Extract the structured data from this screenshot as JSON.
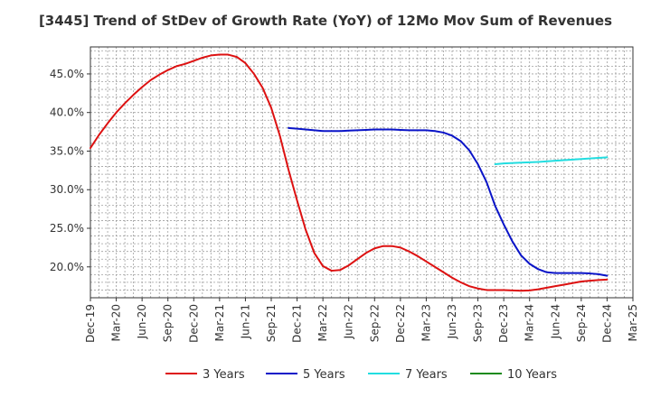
{
  "chart_data": {
    "type": "line",
    "title": "[3445]  Trend of StDev of Growth Rate (YoY) of 12Mo Mov Sum of Revenues",
    "xlabel": "",
    "ylabel": "",
    "x_tick_labels": [
      "Dec-19",
      "Mar-20",
      "Jun-20",
      "Sep-20",
      "Dec-20",
      "Mar-21",
      "Jun-21",
      "Sep-21",
      "Dec-21",
      "Mar-22",
      "Jun-22",
      "Sep-22",
      "Dec-22",
      "Mar-23",
      "Jun-23",
      "Sep-23",
      "Dec-23",
      "Mar-24",
      "Jun-24",
      "Sep-24",
      "Dec-24",
      "Mar-25"
    ],
    "y_tick_labels": [
      "20.0%",
      "25.0%",
      "30.0%",
      "35.0%",
      "40.0%",
      "45.0%"
    ],
    "y_ticks": [
      20,
      25,
      30,
      35,
      40,
      45
    ],
    "ylim": [
      16,
      48.5
    ],
    "x_range_months": [
      0,
      63
    ],
    "grid": true,
    "legend_position": "bottom",
    "series": [
      {
        "name": "3 Years",
        "color": "#dd1111",
        "points": [
          [
            0,
            35.4
          ],
          [
            1,
            37.1
          ],
          [
            2,
            38.6
          ],
          [
            3,
            40.0
          ],
          [
            4,
            41.2
          ],
          [
            5,
            42.3
          ],
          [
            6,
            43.3
          ],
          [
            7,
            44.2
          ],
          [
            8,
            44.9
          ],
          [
            9,
            45.5
          ],
          [
            10,
            46.0
          ],
          [
            11,
            46.3
          ],
          [
            12,
            46.7
          ],
          [
            13,
            47.1
          ],
          [
            14,
            47.4
          ],
          [
            15,
            47.5
          ],
          [
            16,
            47.5
          ],
          [
            17,
            47.2
          ],
          [
            18,
            46.4
          ],
          [
            19,
            45.0
          ],
          [
            20,
            43.2
          ],
          [
            21,
            40.6
          ],
          [
            22,
            37.0
          ],
          [
            23,
            32.6
          ],
          [
            24,
            28.6
          ],
          [
            25,
            24.8
          ],
          [
            26,
            21.8
          ],
          [
            27,
            20.1
          ],
          [
            28,
            19.5
          ],
          [
            29,
            19.6
          ],
          [
            30,
            20.2
          ],
          [
            31,
            21.0
          ],
          [
            32,
            21.8
          ],
          [
            33,
            22.4
          ],
          [
            34,
            22.7
          ],
          [
            35,
            22.7
          ],
          [
            36,
            22.5
          ],
          [
            37,
            22.0
          ],
          [
            38,
            21.4
          ],
          [
            39,
            20.7
          ],
          [
            40,
            20.0
          ],
          [
            41,
            19.3
          ],
          [
            42,
            18.6
          ],
          [
            43,
            18.0
          ],
          [
            44,
            17.5
          ],
          [
            45,
            17.2
          ],
          [
            46,
            17.0
          ],
          [
            47,
            17.0
          ],
          [
            48,
            17.0
          ],
          [
            49,
            16.95
          ],
          [
            50,
            16.9
          ],
          [
            51,
            16.95
          ],
          [
            52,
            17.1
          ],
          [
            53,
            17.3
          ],
          [
            54,
            17.5
          ],
          [
            55,
            17.7
          ],
          [
            56,
            17.9
          ],
          [
            57,
            18.1
          ],
          [
            58,
            18.2
          ],
          [
            59,
            18.3
          ],
          [
            60,
            18.35
          ]
        ]
      },
      {
        "name": "5 Years",
        "color": "#0a14c8",
        "points": [
          [
            23,
            38.0
          ],
          [
            24,
            37.9
          ],
          [
            25,
            37.8
          ],
          [
            26,
            37.7
          ],
          [
            27,
            37.6
          ],
          [
            28,
            37.6
          ],
          [
            29,
            37.6
          ],
          [
            30,
            37.65
          ],
          [
            31,
            37.7
          ],
          [
            32,
            37.75
          ],
          [
            33,
            37.8
          ],
          [
            34,
            37.8
          ],
          [
            35,
            37.8
          ],
          [
            36,
            37.75
          ],
          [
            37,
            37.7
          ],
          [
            38,
            37.7
          ],
          [
            39,
            37.7
          ],
          [
            40,
            37.6
          ],
          [
            41,
            37.4
          ],
          [
            42,
            37.0
          ],
          [
            43,
            36.3
          ],
          [
            44,
            35.1
          ],
          [
            45,
            33.3
          ],
          [
            46,
            31.0
          ],
          [
            47,
            27.9
          ],
          [
            48,
            25.5
          ],
          [
            49,
            23.3
          ],
          [
            50,
            21.5
          ],
          [
            51,
            20.4
          ],
          [
            52,
            19.7
          ],
          [
            53,
            19.3
          ],
          [
            54,
            19.2
          ],
          [
            55,
            19.2
          ],
          [
            56,
            19.2
          ],
          [
            57,
            19.2
          ],
          [
            58,
            19.15
          ],
          [
            59,
            19.05
          ],
          [
            60,
            18.85
          ]
        ]
      },
      {
        "name": "7 Years",
        "color": "#22dde0",
        "points": [
          [
            47,
            33.3
          ],
          [
            48,
            33.4
          ],
          [
            50,
            33.5
          ],
          [
            52,
            33.6
          ],
          [
            54,
            33.75
          ],
          [
            56,
            33.9
          ],
          [
            58,
            34.05
          ],
          [
            60,
            34.2
          ]
        ]
      },
      {
        "name": "10 Years",
        "color": "#1a8a1a",
        "points": []
      }
    ]
  }
}
